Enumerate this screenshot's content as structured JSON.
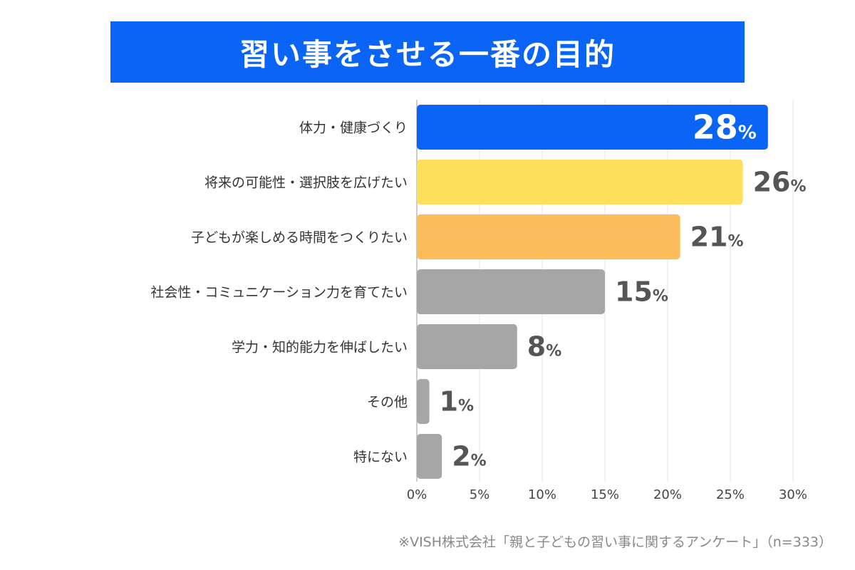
{
  "chart_data": {
    "type": "bar",
    "orientation": "horizontal",
    "title": "習い事をさせる一番の目的",
    "categories": [
      "体力・健康づくり",
      "将来の可能性・選択肢を広げたい",
      "子どもが楽しめる時間をつくりたい",
      "社会性・コミュニケーション力を育てたい",
      "学力・知的能力を伸ばしたい",
      "その他",
      "特にない"
    ],
    "values": [
      28,
      26,
      21,
      15,
      8,
      1,
      2
    ],
    "value_suffix": "%",
    "bar_colors": [
      "#0a64f5",
      "#ffde59",
      "#fcbc5c",
      "#a6a6a6",
      "#a6a6a6",
      "#a6a6a6",
      "#a6a6a6"
    ],
    "value_label_colors": [
      "#ffffff",
      "#555555",
      "#555555",
      "#555555",
      "#555555",
      "#555555",
      "#555555"
    ],
    "xlim": [
      0,
      30
    ],
    "xticks": [
      0,
      5,
      10,
      15,
      20,
      25,
      30
    ],
    "xtick_labels": [
      "0%",
      "5%",
      "10%",
      "15%",
      "20%",
      "25%",
      "30%"
    ],
    "grid": true,
    "xlabel": "",
    "ylabel": ""
  },
  "source_note": "※VISH株式会社「親と子どもの習い事に関するアンケート」（n=333）"
}
